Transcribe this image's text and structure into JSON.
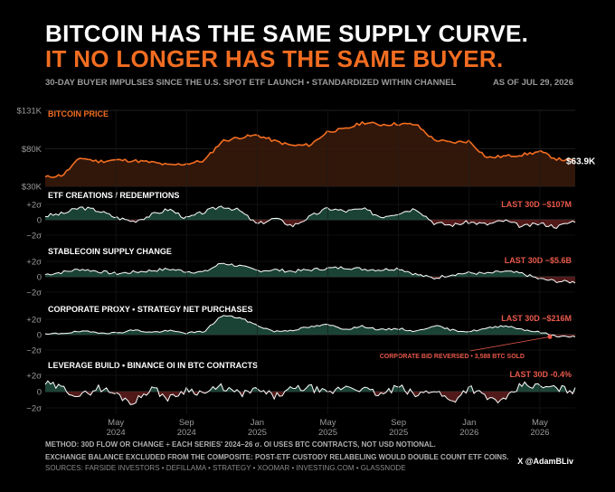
{
  "header": {
    "title_line1": "BITCOIN HAS THE SAME SUPPLY CURVE.",
    "title_line2": "IT NO LONGER HAS THE SAME BUYER.",
    "subtitle": "30-DAY BUYER IMPULSES SINCE THE U.S. SPOT ETF LAUNCH  •  STANDARDIZED WITHIN CHANNEL",
    "as_of": "AS OF JUL 29, 2026"
  },
  "colors": {
    "accent": "#f26d21",
    "positive": "#1d4a3c",
    "negative": "#5a1c1c",
    "line": "#ffffff",
    "label_red": "#e8574a"
  },
  "chart_data": [
    {
      "type": "area",
      "title": "BITCOIN PRICE",
      "y_tick_labels": [
        "$131K",
        "$80K",
        "$30K"
      ],
      "ylim": [
        30,
        131
      ],
      "last_value_label": "$63.9K",
      "x_tick_labels": [
        "May\n2024",
        "Sep\n2024",
        "Jan\n2025",
        "May\n2025",
        "Sep\n2025",
        "Jan\n2026",
        "May\n2026"
      ],
      "x": [
        "2024-01",
        "2024-02",
        "2024-03",
        "2024-04",
        "2024-05",
        "2024-06",
        "2024-07",
        "2024-08",
        "2024-09",
        "2024-10",
        "2024-11",
        "2024-12",
        "2025-01",
        "2025-02",
        "2025-03",
        "2025-04",
        "2025-05",
        "2025-06",
        "2025-07",
        "2025-08",
        "2025-09",
        "2025-10",
        "2025-11",
        "2025-12",
        "2026-01",
        "2026-02",
        "2026-03",
        "2026-04",
        "2026-05",
        "2026-06",
        "2026-07"
      ],
      "values": [
        42,
        45,
        68,
        63,
        65,
        64,
        62,
        58,
        60,
        64,
        90,
        95,
        98,
        90,
        84,
        85,
        103,
        106,
        115,
        112,
        113,
        112,
        92,
        88,
        90,
        68,
        70,
        72,
        76,
        66,
        64
      ]
    },
    {
      "type": "area",
      "title": "ETF CREATIONS / REDEMPTIONS",
      "y_tick_labels": [
        "+2σ",
        "0",
        "−2σ"
      ],
      "ylim": [
        -2.5,
        2.5
      ],
      "last_30d_label": "LAST 30D  −$107M",
      "values": [
        0.5,
        0.8,
        1.6,
        1.2,
        0.3,
        -0.2,
        0.6,
        1.4,
        0.2,
        1.0,
        1.8,
        1.2,
        -0.6,
        0.2,
        -0.8,
        0.4,
        1.5,
        1.1,
        1.4,
        0.4,
        0.9,
        1.5,
        -0.4,
        -0.7,
        -0.3,
        -0.6,
        -0.1,
        -0.9,
        -0.5,
        -0.9,
        -0.1
      ]
    },
    {
      "type": "area",
      "title": "STABLECOIN SUPPLY CHANGE",
      "y_tick_labels": [
        "+2σ",
        "0",
        "−2σ"
      ],
      "ylim": [
        -2.5,
        2.5
      ],
      "last_30d_label": "LAST 30D  −$5.6B",
      "values": [
        0.3,
        0.6,
        1.0,
        0.7,
        0.4,
        0.6,
        0.8,
        1.0,
        0.7,
        0.6,
        1.8,
        1.4,
        0.8,
        0.9,
        0.7,
        0.9,
        1.1,
        1.2,
        1.0,
        0.9,
        1.1,
        0.3,
        -0.2,
        0.3,
        0.5,
        0.4,
        0.7,
        0.4,
        -0.3,
        -0.6,
        -0.7
      ]
    },
    {
      "type": "area",
      "title": "CORPORATE PROXY  •  STRATEGY NET PURCHASES",
      "y_tick_labels": [
        "+2σ",
        "0",
        "−2σ"
      ],
      "ylim": [
        -2.5,
        2.5
      ],
      "last_30d_label": "LAST 30D  −$216M",
      "annotation": "CORPORATE BID REVERSED  •  3,588 BTC SOLD",
      "values": [
        0.0,
        0.2,
        0.4,
        0.3,
        0.2,
        0.6,
        0.3,
        0.5,
        0.2,
        0.4,
        2.5,
        2.2,
        1.2,
        0.4,
        0.6,
        1.0,
        1.3,
        0.7,
        1.1,
        0.6,
        0.8,
        0.4,
        1.2,
        0.6,
        0.4,
        0.8,
        1.2,
        0.7,
        0.3,
        -0.2,
        -0.3
      ]
    },
    {
      "type": "area",
      "title": "LEVERAGE BUILD  •  BINANCE OI IN BTC CONTRACTS",
      "y_tick_labels": [
        "+2σ",
        "0",
        "−2σ"
      ],
      "ylim": [
        -2.5,
        2.5
      ],
      "last_30d_label": "LAST 30D  -0.4%",
      "values": [
        1.0,
        0.4,
        -0.6,
        0.5,
        -0.3,
        -1.4,
        0.5,
        -0.9,
        0.3,
        -0.2,
        0.6,
        -0.3,
        0.2,
        -0.6,
        0.3,
        0.5,
        -0.3,
        0.7,
        0.3,
        -0.4,
        0.6,
        -0.5,
        0.3,
        -1.3,
        0.6,
        -0.8,
        -1.2,
        0.9,
        0.6,
        0.4,
        0.1
      ]
    }
  ],
  "footer": {
    "method": "METHOD: 30D FLOW OR CHANGE ÷ EACH SERIES' 2024–26 σ. OI USES BTC CONTRACTS, NOT USD NOTIONAL.",
    "exclusion": "EXCHANGE BALANCE EXCLUDED FROM THE COMPOSITE: POST-ETF CUSTODY RELABELING WOULD DOUBLE COUNT ETF COINS.",
    "sources": "SOURCES: FARSIDE INVESTORS • DEFILLAMA • STRATEGY • XOOMAR • INVESTING.COM • GLASSNODE",
    "handle": "X @AdamBLiv"
  }
}
